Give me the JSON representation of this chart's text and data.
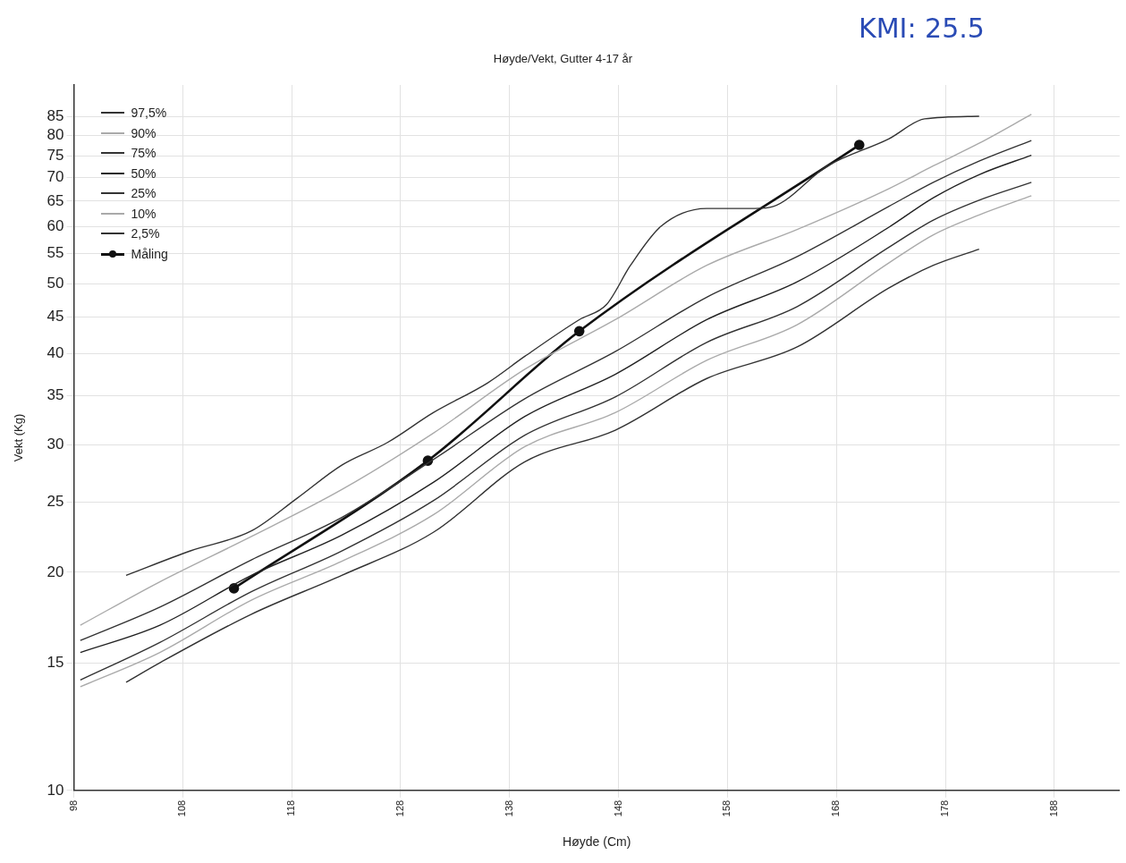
{
  "chart_data": {
    "type": "line",
    "title": "Høyde/Vekt, Gutter 4-17 år",
    "xlabel": "Høyde (Cm)",
    "ylabel": "Vekt (Kg)",
    "annotations": [
      "KMI: 25.5"
    ],
    "log": "y",
    "grid": true,
    "legend": "top left",
    "xlim": [
      98,
      194
    ],
    "xticks": [
      98,
      108,
      118,
      128,
      138,
      148,
      158,
      168,
      178,
      188
    ],
    "ylim": [
      10,
      94
    ],
    "yticks": [
      10,
      15,
      20,
      25,
      30,
      35,
      40,
      45,
      50,
      55,
      60,
      65,
      70,
      75,
      80,
      85
    ],
    "series": [
      {
        "name": "97,5%",
        "color": "#333333",
        "marker": "none",
        "x": [
          102.8,
          108.7,
          114.3,
          118.5,
          122.6,
          126.8,
          131,
          136,
          139.4,
          144.4,
          146.9,
          149.1,
          151.9,
          156.1,
          160.5,
          162.2,
          167.2,
          172.8,
          176.1,
          181.1
        ],
        "values": [
          19.8,
          21.4,
          22.8,
          25.3,
          28.1,
          30.2,
          33.2,
          36.5,
          39.7,
          44.6,
          46.8,
          53.0,
          60.0,
          63.5,
          63.5,
          63.9,
          72.7,
          79.2,
          84.4,
          85.1
        ]
      },
      {
        "name": "90%",
        "color": "#aaaaaa",
        "marker": "none",
        "x": [
          98.6,
          105.9,
          114.3,
          122.6,
          131.0,
          139.4,
          147.7,
          156.1,
          164.4,
          172.8,
          176.9,
          181.1,
          185.9
        ],
        "values": [
          16.9,
          19.4,
          22.4,
          26.0,
          31.1,
          38.1,
          44.6,
          53.0,
          59.4,
          67.6,
          72.7,
          78.1,
          85.6
        ]
      },
      {
        "name": "75%",
        "color": "#333333",
        "marker": "none",
        "x": [
          98.6,
          105.9,
          114.3,
          122.6,
          131.0,
          139.4,
          147.7,
          156.1,
          164.4,
          172.8,
          176.9,
          181.1,
          185.9
        ],
        "values": [
          16.1,
          17.9,
          20.8,
          23.8,
          28.6,
          34.7,
          40.3,
          47.9,
          54.5,
          63.9,
          69.0,
          73.8,
          78.8
        ]
      },
      {
        "name": "50%",
        "color": "#222222",
        "marker": "none",
        "x": [
          98.6,
          105.9,
          114.3,
          122.6,
          131.0,
          139.4,
          147.7,
          156.1,
          164.4,
          172.8,
          176.9,
          181.1,
          185.9
        ],
        "values": [
          15.5,
          16.9,
          19.8,
          22.5,
          26.6,
          32.8,
          37.5,
          44.6,
          50.3,
          59.8,
          65.7,
          70.7,
          75.2
        ]
      },
      {
        "name": "25%",
        "color": "#333333",
        "marker": "none",
        "x": [
          98.6,
          105.9,
          114.3,
          122.6,
          131.0,
          139.4,
          147.7,
          156.1,
          164.4,
          172.8,
          176.9,
          181.1,
          185.9
        ],
        "values": [
          14.2,
          16.0,
          18.8,
          21.4,
          25.1,
          30.9,
          34.9,
          41.5,
          46.5,
          56.1,
          61.2,
          65.2,
          69.0
        ]
      },
      {
        "name": "10%",
        "color": "#aaaaaa",
        "marker": "none",
        "x": [
          98.6,
          105.9,
          114.3,
          122.6,
          131.0,
          139.4,
          147.7,
          156.1,
          164.4,
          172.8,
          176.9,
          181.1,
          185.9
        ],
        "values": [
          13.9,
          15.5,
          18.3,
          20.7,
          24.0,
          29.8,
          33.2,
          39.2,
          43.9,
          53.4,
          58.4,
          62.2,
          66.1
        ]
      },
      {
        "name": "2,5%",
        "color": "#333333",
        "marker": "none",
        "x": [
          102.8,
          105.9,
          114.3,
          122.6,
          131.0,
          139.4,
          147.7,
          156.1,
          164.4,
          172.8,
          176.9,
          181.1
        ],
        "values": [
          14.1,
          15.0,
          17.5,
          19.8,
          22.7,
          28.4,
          31.4,
          37.0,
          40.9,
          49.3,
          53.0,
          55.8
        ]
      },
      {
        "name": "Måling",
        "color": "#111111",
        "marker": "circle",
        "x": [
          112.7,
          130.5,
          144.4,
          170.1
        ],
        "values": [
          19.0,
          28.5,
          43.0,
          77.7
        ]
      }
    ]
  }
}
